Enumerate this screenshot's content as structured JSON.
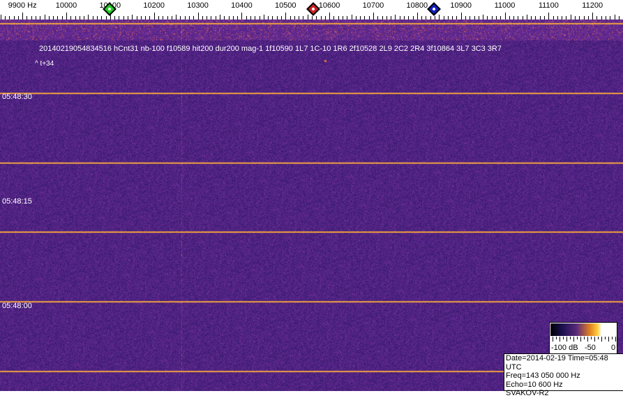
{
  "frequency_axis": {
    "unit": "Hz",
    "labels": [
      {
        "f": 9900,
        "text": "9900 Hz"
      },
      {
        "f": 10000,
        "text": "10000"
      },
      {
        "f": 10100,
        "text": "10100"
      },
      {
        "f": 10200,
        "text": "10200"
      },
      {
        "f": 10300,
        "text": "10300"
      },
      {
        "f": 10400,
        "text": "10400"
      },
      {
        "f": 10500,
        "text": "10500"
      },
      {
        "f": 10600,
        "text": "10600"
      },
      {
        "f": 10700,
        "text": "10700"
      },
      {
        "f": 10800,
        "text": "10800"
      },
      {
        "f": 10900,
        "text": "10900"
      },
      {
        "f": 11000,
        "text": "11000"
      },
      {
        "f": 11100,
        "text": "11100"
      },
      {
        "f": 11200,
        "text": "11200"
      }
    ],
    "markers": [
      {
        "name": "green-marker",
        "f": 10100,
        "color": "#22cc22"
      },
      {
        "name": "red-marker",
        "f": 10565,
        "color": "#cc2222"
      },
      {
        "name": "blue-marker",
        "f": 10840,
        "color": "#1020c0"
      }
    ]
  },
  "waterfall": {
    "event_text": "20140219054834516 hCnt31 nb-100 f10589 hit200 dur200 mag-1 1f10590 1L7 1C-10 1R6 2f10528 2L9 2C2 2R4 3f10864 3L7 3C3 3R7",
    "offset_text": "^ t+34",
    "time_labels": [
      "05:48:30",
      "05:48:15",
      "05:48:00"
    ],
    "colors": {
      "background": "#3a1f80",
      "line": "#f0a040"
    }
  },
  "colorbar": {
    "labels": [
      "-100 dB",
      "-50",
      "0"
    ]
  },
  "info": {
    "date_time": "Date=2014-02-19 Time=05:48 UTC",
    "freq": "Freq=143 050 000 Hz",
    "echo": "Echo=10 600 Hz",
    "station": "SVAKOV-R2"
  }
}
